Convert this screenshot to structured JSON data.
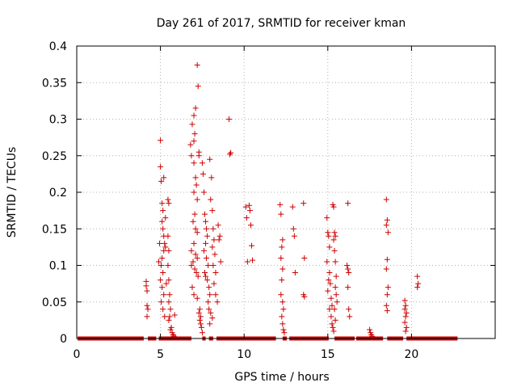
{
  "chart_data": {
    "type": "scatter",
    "title": "Day 261 of 2017, SRMTID for receiver kman",
    "xlabel": "GPS time / hours",
    "ylabel": "SRMTID / TECUs",
    "xlim": [
      0,
      25
    ],
    "ylim": [
      0,
      0.4
    ],
    "x_ticks": [
      0,
      5,
      10,
      15,
      20
    ],
    "x_tick_labels": [
      "0",
      "5",
      "10",
      "15",
      "20"
    ],
    "y_ticks": [
      0,
      0.05,
      0.1,
      0.15,
      0.2,
      0.25,
      0.3,
      0.35,
      0.4
    ],
    "y_tick_labels": [
      "0",
      "0.05",
      "0.1",
      "0.15",
      "0.2",
      "0.25",
      "0.3",
      "0.35",
      "0.4"
    ],
    "grid": true,
    "marker": "+",
    "colors": {
      "points": "#cc0000",
      "grid": "#b0b0b0",
      "axis": "#000000"
    },
    "zero_baseline_segments": [
      [
        0.05,
        4.0
      ],
      [
        4.25,
        4.75
      ],
      [
        4.9,
        6.85
      ],
      [
        7.5,
        7.7
      ],
      [
        7.9,
        8.15
      ],
      [
        8.35,
        11.9
      ],
      [
        12.3,
        12.55
      ],
      [
        12.7,
        15.05
      ],
      [
        15.4,
        16.6
      ],
      [
        16.7,
        18.3
      ],
      [
        18.55,
        19.5
      ],
      [
        19.7,
        22.75
      ]
    ],
    "series": [
      {
        "name": "SRMTID",
        "points": [
          [
            4.15,
            0.078
          ],
          [
            4.15,
            0.072
          ],
          [
            4.2,
            0.065
          ],
          [
            4.2,
            0.045
          ],
          [
            4.25,
            0.04
          ],
          [
            4.2,
            0.03
          ],
          [
            4.9,
            0.105
          ],
          [
            4.95,
            0.13
          ],
          [
            5.0,
            0.271
          ],
          [
            5.0,
            0.235
          ],
          [
            5.05,
            0.215
          ],
          [
            5.1,
            0.185
          ],
          [
            5.15,
            0.175
          ],
          [
            5.2,
            0.22
          ],
          [
            5.1,
            0.16
          ],
          [
            5.15,
            0.15
          ],
          [
            5.2,
            0.14
          ],
          [
            5.25,
            0.13
          ],
          [
            5.2,
            0.12
          ],
          [
            5.1,
            0.11
          ],
          [
            5.05,
            0.1
          ],
          [
            5.15,
            0.09
          ],
          [
            5.0,
            0.08
          ],
          [
            5.1,
            0.07
          ],
          [
            5.2,
            0.06
          ],
          [
            5.05,
            0.05
          ],
          [
            5.15,
            0.04
          ],
          [
            5.25,
            0.03
          ],
          [
            5.3,
            0.165
          ],
          [
            5.3,
            0.125
          ],
          [
            5.35,
            0.075
          ],
          [
            5.45,
            0.19
          ],
          [
            5.5,
            0.185
          ],
          [
            5.45,
            0.14
          ],
          [
            5.5,
            0.12
          ],
          [
            5.45,
            0.1
          ],
          [
            5.5,
            0.08
          ],
          [
            5.55,
            0.06
          ],
          [
            5.5,
            0.05
          ],
          [
            5.6,
            0.04
          ],
          [
            5.55,
            0.03
          ],
          [
            5.5,
            0.025
          ],
          [
            5.65,
            0.015
          ],
          [
            5.6,
            0.012
          ],
          [
            5.7,
            0.008
          ],
          [
            5.75,
            0.005
          ],
          [
            5.8,
            0.003
          ],
          [
            5.85,
            0.032
          ],
          [
            5.9,
            0.002
          ],
          [
            6.8,
            0.265
          ],
          [
            6.9,
            0.293
          ],
          [
            6.85,
            0.25
          ],
          [
            7.0,
            0.305
          ],
          [
            7.1,
            0.315
          ],
          [
            7.2,
            0.374
          ],
          [
            7.25,
            0.345
          ],
          [
            7.0,
            0.27
          ],
          [
            7.05,
            0.28
          ],
          [
            7.3,
            0.255
          ],
          [
            7.3,
            0.25
          ],
          [
            7.0,
            0.24
          ],
          [
            7.1,
            0.22
          ],
          [
            7.15,
            0.21
          ],
          [
            7.0,
            0.2
          ],
          [
            7.2,
            0.19
          ],
          [
            7.05,
            0.17
          ],
          [
            6.95,
            0.16
          ],
          [
            7.1,
            0.15
          ],
          [
            7.2,
            0.145
          ],
          [
            7.0,
            0.13
          ],
          [
            6.85,
            0.12
          ],
          [
            7.1,
            0.115
          ],
          [
            7.2,
            0.11
          ],
          [
            6.95,
            0.105
          ],
          [
            6.85,
            0.1
          ],
          [
            7.05,
            0.095
          ],
          [
            7.15,
            0.09
          ],
          [
            7.25,
            0.085
          ],
          [
            6.9,
            0.07
          ],
          [
            7.0,
            0.06
          ],
          [
            7.2,
            0.055
          ],
          [
            7.3,
            0.035
          ],
          [
            7.35,
            0.025
          ],
          [
            7.4,
            0.02
          ],
          [
            7.45,
            0.015
          ],
          [
            7.5,
            0.008
          ],
          [
            7.4,
            0.03
          ],
          [
            7.35,
            0.04
          ],
          [
            7.5,
            0.24
          ],
          [
            7.55,
            0.225
          ],
          [
            7.6,
            0.2
          ],
          [
            7.65,
            0.17
          ],
          [
            7.7,
            0.16
          ],
          [
            7.75,
            0.15
          ],
          [
            7.8,
            0.14
          ],
          [
            7.7,
            0.13
          ],
          [
            7.6,
            0.12
          ],
          [
            7.75,
            0.11
          ],
          [
            7.85,
            0.1
          ],
          [
            7.65,
            0.09
          ],
          [
            7.7,
            0.085
          ],
          [
            7.8,
            0.08
          ],
          [
            7.9,
            0.07
          ],
          [
            7.95,
            0.06
          ],
          [
            7.85,
            0.05
          ],
          [
            7.9,
            0.04
          ],
          [
            8.0,
            0.035
          ],
          [
            8.1,
            0.028
          ],
          [
            7.95,
            0.02
          ],
          [
            7.95,
            0.245
          ],
          [
            8.05,
            0.22
          ],
          [
            8.0,
            0.19
          ],
          [
            8.1,
            0.175
          ],
          [
            8.15,
            0.15
          ],
          [
            8.2,
            0.135
          ],
          [
            8.1,
            0.125
          ],
          [
            8.25,
            0.115
          ],
          [
            8.15,
            0.1
          ],
          [
            8.3,
            0.09
          ],
          [
            8.2,
            0.075
          ],
          [
            8.3,
            0.06
          ],
          [
            8.4,
            0.05
          ],
          [
            8.5,
            0.135
          ],
          [
            8.55,
            0.14
          ],
          [
            8.45,
            0.155
          ],
          [
            8.6,
            0.105
          ],
          [
            9.1,
            0.3
          ],
          [
            9.15,
            0.252
          ],
          [
            9.2,
            0.254
          ],
          [
            10.1,
            0.18
          ],
          [
            10.15,
            0.165
          ],
          [
            10.2,
            0.105
          ],
          [
            10.3,
            0.182
          ],
          [
            10.35,
            0.175
          ],
          [
            10.4,
            0.155
          ],
          [
            10.45,
            0.127
          ],
          [
            10.5,
            0.107
          ],
          [
            12.15,
            0.183
          ],
          [
            12.2,
            0.17
          ],
          [
            12.3,
            0.135
          ],
          [
            12.25,
            0.125
          ],
          [
            12.2,
            0.11
          ],
          [
            12.3,
            0.095
          ],
          [
            12.25,
            0.08
          ],
          [
            12.2,
            0.06
          ],
          [
            12.3,
            0.05
          ],
          [
            12.35,
            0.04
          ],
          [
            12.25,
            0.03
          ],
          [
            12.3,
            0.02
          ],
          [
            12.35,
            0.012
          ],
          [
            12.4,
            0.008
          ],
          [
            12.9,
            0.18
          ],
          [
            12.95,
            0.15
          ],
          [
            13.0,
            0.14
          ],
          [
            13.05,
            0.09
          ],
          [
            13.55,
            0.185
          ],
          [
            13.6,
            0.11
          ],
          [
            13.55,
            0.06
          ],
          [
            13.6,
            0.057
          ],
          [
            14.95,
            0.165
          ],
          [
            15.0,
            0.145
          ],
          [
            15.05,
            0.14
          ],
          [
            15.1,
            0.125
          ],
          [
            14.95,
            0.105
          ],
          [
            15.1,
            0.09
          ],
          [
            15.05,
            0.08
          ],
          [
            15.15,
            0.075
          ],
          [
            15.0,
            0.065
          ],
          [
            15.2,
            0.055
          ],
          [
            15.25,
            0.045
          ],
          [
            15.1,
            0.04
          ],
          [
            15.2,
            0.03
          ],
          [
            15.25,
            0.02
          ],
          [
            15.3,
            0.015
          ],
          [
            15.35,
            0.01
          ],
          [
            15.3,
            0.183
          ],
          [
            15.35,
            0.18
          ],
          [
            15.4,
            0.145
          ],
          [
            15.45,
            0.14
          ],
          [
            15.35,
            0.135
          ],
          [
            15.4,
            0.12
          ],
          [
            15.45,
            0.105
          ],
          [
            15.5,
            0.085
          ],
          [
            15.45,
            0.07
          ],
          [
            15.5,
            0.06
          ],
          [
            15.55,
            0.05
          ],
          [
            15.4,
            0.04
          ],
          [
            15.45,
            0.025
          ],
          [
            16.2,
            0.185
          ],
          [
            16.15,
            0.1
          ],
          [
            16.2,
            0.095
          ],
          [
            16.25,
            0.09
          ],
          [
            16.2,
            0.07
          ],
          [
            16.25,
            0.04
          ],
          [
            16.3,
            0.03
          ],
          [
            17.5,
            0.012
          ],
          [
            17.55,
            0.008
          ],
          [
            17.6,
            0.005
          ],
          [
            17.65,
            0.003
          ],
          [
            18.5,
            0.19
          ],
          [
            18.55,
            0.162
          ],
          [
            18.5,
            0.155
          ],
          [
            18.6,
            0.145
          ],
          [
            18.55,
            0.108
          ],
          [
            18.5,
            0.095
          ],
          [
            18.6,
            0.07
          ],
          [
            18.55,
            0.06
          ],
          [
            18.5,
            0.045
          ],
          [
            18.55,
            0.038
          ],
          [
            19.6,
            0.052
          ],
          [
            19.65,
            0.045
          ],
          [
            19.6,
            0.04
          ],
          [
            19.7,
            0.035
          ],
          [
            19.65,
            0.03
          ],
          [
            19.6,
            0.022
          ],
          [
            19.7,
            0.015
          ],
          [
            19.65,
            0.01
          ],
          [
            20.35,
            0.085
          ],
          [
            20.4,
            0.075
          ],
          [
            20.35,
            0.07
          ]
        ]
      }
    ]
  }
}
